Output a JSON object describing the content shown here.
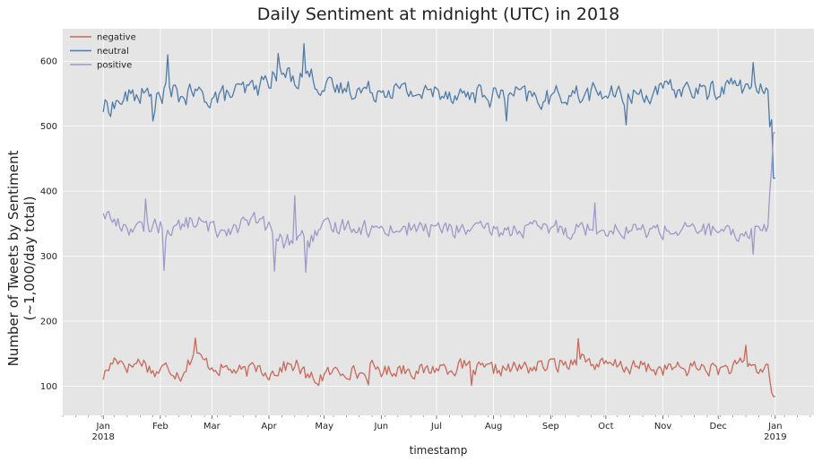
{
  "chart_data": {
    "type": "line",
    "title": "Daily Sentiment at midnight (UTC) in 2018",
    "xlabel": "timestamp",
    "ylabel_line1": "Number of Tweets by Sentiment",
    "ylabel_line2": "(~1,000/day total)",
    "x_start": "2018-01-01",
    "x_end": "2019-01-01",
    "xlim": [
      "2017-12-10",
      "2019-01-22"
    ],
    "ylim": [
      55,
      650
    ],
    "yticks": [
      100,
      200,
      300,
      400,
      500,
      600
    ],
    "xticks": [
      {
        "date": "2018-01-01",
        "label": "Jan",
        "sublabel": "2018"
      },
      {
        "date": "2018-02-01",
        "label": "Feb",
        "sublabel": ""
      },
      {
        "date": "2018-03-01",
        "label": "Mar",
        "sublabel": ""
      },
      {
        "date": "2018-04-01",
        "label": "Apr",
        "sublabel": ""
      },
      {
        "date": "2018-05-01",
        "label": "May",
        "sublabel": ""
      },
      {
        "date": "2018-06-01",
        "label": "Jun",
        "sublabel": ""
      },
      {
        "date": "2018-07-01",
        "label": "Jul",
        "sublabel": ""
      },
      {
        "date": "2018-08-01",
        "label": "Aug",
        "sublabel": ""
      },
      {
        "date": "2018-09-01",
        "label": "Sep",
        "sublabel": ""
      },
      {
        "date": "2018-10-01",
        "label": "Oct",
        "sublabel": ""
      },
      {
        "date": "2018-11-01",
        "label": "Nov",
        "sublabel": ""
      },
      {
        "date": "2018-12-01",
        "label": "Dec",
        "sublabel": ""
      },
      {
        "date": "2019-01-01",
        "label": "Jan",
        "sublabel": "2019"
      }
    ],
    "grid": true,
    "legend_position": "top-left",
    "series": [
      {
        "name": "negative",
        "color": "#c8695a",
        "anchors": [
          [
            "2018-01-01",
            115
          ],
          [
            "2018-01-08",
            145
          ],
          [
            "2018-01-15",
            130
          ],
          [
            "2018-01-22",
            140
          ],
          [
            "2018-01-29",
            120
          ],
          [
            "2018-02-05",
            130
          ],
          [
            "2018-02-12",
            118
          ],
          [
            "2018-02-19",
            150
          ],
          [
            "2018-02-26",
            135
          ],
          [
            "2018-03-05",
            128
          ],
          [
            "2018-03-12",
            125
          ],
          [
            "2018-03-19",
            120
          ],
          [
            "2018-03-26",
            130
          ],
          [
            "2018-04-02",
            120
          ],
          [
            "2018-04-09",
            130
          ],
          [
            "2018-04-16",
            132
          ],
          [
            "2018-04-23",
            110
          ],
          [
            "2018-04-30",
            115
          ],
          [
            "2018-05-07",
            122
          ],
          [
            "2018-05-14",
            125
          ],
          [
            "2018-05-21",
            118
          ],
          [
            "2018-05-28",
            128
          ],
          [
            "2018-06-04",
            122
          ],
          [
            "2018-06-11",
            128
          ],
          [
            "2018-06-18",
            125
          ],
          [
            "2018-06-25",
            122
          ],
          [
            "2018-07-02",
            130
          ],
          [
            "2018-07-09",
            128
          ],
          [
            "2018-07-16",
            130
          ],
          [
            "2018-07-23",
            125
          ],
          [
            "2018-07-30",
            124
          ],
          [
            "2018-08-06",
            126
          ],
          [
            "2018-08-13",
            127
          ],
          [
            "2018-08-20",
            129
          ],
          [
            "2018-08-27",
            130
          ],
          [
            "2018-09-03",
            133
          ],
          [
            "2018-09-10",
            135
          ],
          [
            "2018-09-17",
            145
          ],
          [
            "2018-09-24",
            135
          ],
          [
            "2018-10-01",
            130
          ],
          [
            "2018-10-08",
            132
          ],
          [
            "2018-10-15",
            128
          ],
          [
            "2018-10-22",
            130
          ],
          [
            "2018-10-29",
            125
          ],
          [
            "2018-11-05",
            128
          ],
          [
            "2018-11-12",
            125
          ],
          [
            "2018-11-19",
            130
          ],
          [
            "2018-11-26",
            127
          ],
          [
            "2018-12-03",
            126
          ],
          [
            "2018-12-10",
            128
          ],
          [
            "2018-12-17",
            135
          ],
          [
            "2018-12-24",
            124
          ],
          [
            "2018-12-28",
            130
          ],
          [
            "2018-12-31",
            84
          ]
        ],
        "noise_amp": 16,
        "spikes": [
          [
            "2018-02-20",
            174
          ],
          [
            "2018-09-16",
            173
          ],
          [
            "2018-12-16",
            163
          ],
          [
            "2018-04-28",
            101
          ],
          [
            "2018-05-25",
            102
          ],
          [
            "2018-07-20",
            101
          ]
        ]
      },
      {
        "name": "neutral",
        "color": "#4f7ba8",
        "anchors": [
          [
            "2018-01-01",
            528
          ],
          [
            "2018-01-08",
            535
          ],
          [
            "2018-01-15",
            545
          ],
          [
            "2018-01-22",
            550
          ],
          [
            "2018-01-29",
            540
          ],
          [
            "2018-02-05",
            555
          ],
          [
            "2018-02-12",
            545
          ],
          [
            "2018-02-19",
            550
          ],
          [
            "2018-02-26",
            545
          ],
          [
            "2018-03-05",
            545
          ],
          [
            "2018-03-12",
            550
          ],
          [
            "2018-03-19",
            555
          ],
          [
            "2018-03-26",
            560
          ],
          [
            "2018-04-02",
            575
          ],
          [
            "2018-04-09",
            580
          ],
          [
            "2018-04-16",
            575
          ],
          [
            "2018-04-23",
            580
          ],
          [
            "2018-04-30",
            560
          ],
          [
            "2018-05-07",
            555
          ],
          [
            "2018-05-14",
            560
          ],
          [
            "2018-05-21",
            555
          ],
          [
            "2018-05-28",
            555
          ],
          [
            "2018-06-04",
            560
          ],
          [
            "2018-06-11",
            555
          ],
          [
            "2018-06-18",
            552
          ],
          [
            "2018-06-25",
            550
          ],
          [
            "2018-07-02",
            555
          ],
          [
            "2018-07-09",
            552
          ],
          [
            "2018-07-16",
            548
          ],
          [
            "2018-07-23",
            550
          ],
          [
            "2018-07-30",
            545
          ],
          [
            "2018-08-06",
            550
          ],
          [
            "2018-08-13",
            548
          ],
          [
            "2018-08-20",
            545
          ],
          [
            "2018-08-27",
            540
          ],
          [
            "2018-09-03",
            545
          ],
          [
            "2018-09-10",
            550
          ],
          [
            "2018-09-17",
            548
          ],
          [
            "2018-09-24",
            552
          ],
          [
            "2018-10-01",
            550
          ],
          [
            "2018-10-08",
            545
          ],
          [
            "2018-10-15",
            548
          ],
          [
            "2018-10-22",
            550
          ],
          [
            "2018-10-29",
            552
          ],
          [
            "2018-11-05",
            555
          ],
          [
            "2018-11-12",
            558
          ],
          [
            "2018-11-19",
            555
          ],
          [
            "2018-11-26",
            552
          ],
          [
            "2018-12-03",
            560
          ],
          [
            "2018-12-10",
            565
          ],
          [
            "2018-12-17",
            560
          ],
          [
            "2018-12-24",
            552
          ],
          [
            "2018-12-28",
            565
          ],
          [
            "2018-12-31",
            420
          ]
        ],
        "noise_amp": 22,
        "spikes": [
          [
            "2018-04-20",
            627
          ],
          [
            "2018-02-05",
            610
          ],
          [
            "2018-04-06",
            612
          ],
          [
            "2018-12-20",
            598
          ],
          [
            "2018-01-28",
            508
          ],
          [
            "2018-08-08",
            508
          ],
          [
            "2018-10-12",
            502
          ],
          [
            "2018-12-30",
            510
          ]
        ]
      },
      {
        "name": "positive",
        "color": "#9e9ac8",
        "anchors": [
          [
            "2018-01-01",
            370
          ],
          [
            "2018-01-08",
            350
          ],
          [
            "2018-01-15",
            345
          ],
          [
            "2018-01-22",
            340
          ],
          [
            "2018-01-29",
            350
          ],
          [
            "2018-02-05",
            340
          ],
          [
            "2018-02-12",
            345
          ],
          [
            "2018-02-19",
            355
          ],
          [
            "2018-02-26",
            345
          ],
          [
            "2018-03-05",
            340
          ],
          [
            "2018-03-12",
            345
          ],
          [
            "2018-03-19",
            350
          ],
          [
            "2018-03-26",
            355
          ],
          [
            "2018-04-02",
            340
          ],
          [
            "2018-04-09",
            320
          ],
          [
            "2018-04-16",
            330
          ],
          [
            "2018-04-23",
            325
          ],
          [
            "2018-04-30",
            340
          ],
          [
            "2018-05-07",
            345
          ],
          [
            "2018-05-14",
            350
          ],
          [
            "2018-05-21",
            345
          ],
          [
            "2018-05-28",
            340
          ],
          [
            "2018-06-04",
            345
          ],
          [
            "2018-06-11",
            340
          ],
          [
            "2018-06-18",
            345
          ],
          [
            "2018-06-25",
            340
          ],
          [
            "2018-07-02",
            345
          ],
          [
            "2018-07-09",
            340
          ],
          [
            "2018-07-16",
            342
          ],
          [
            "2018-07-23",
            338
          ],
          [
            "2018-07-30",
            340
          ],
          [
            "2018-08-06",
            338
          ],
          [
            "2018-08-13",
            340
          ],
          [
            "2018-08-20",
            342
          ],
          [
            "2018-08-27",
            340
          ],
          [
            "2018-09-03",
            345
          ],
          [
            "2018-09-10",
            340
          ],
          [
            "2018-09-17",
            345
          ],
          [
            "2018-09-24",
            342
          ],
          [
            "2018-10-01",
            345
          ],
          [
            "2018-10-08",
            340
          ],
          [
            "2018-10-15",
            342
          ],
          [
            "2018-10-22",
            338
          ],
          [
            "2018-10-29",
            340
          ],
          [
            "2018-11-05",
            340
          ],
          [
            "2018-11-12",
            338
          ],
          [
            "2018-11-19",
            342
          ],
          [
            "2018-11-26",
            340
          ],
          [
            "2018-12-03",
            335
          ],
          [
            "2018-12-10",
            330
          ],
          [
            "2018-12-17",
            338
          ],
          [
            "2018-12-24",
            345
          ],
          [
            "2018-12-28",
            340
          ],
          [
            "2018-12-31",
            490
          ]
        ],
        "noise_amp": 18,
        "spikes": [
          [
            "2018-04-15",
            393
          ],
          [
            "2018-02-03",
            278
          ],
          [
            "2018-04-04",
            277
          ],
          [
            "2018-04-21",
            275
          ],
          [
            "2018-01-24",
            388
          ],
          [
            "2018-09-25",
            382
          ],
          [
            "2018-12-20",
            303
          ]
        ]
      }
    ]
  }
}
